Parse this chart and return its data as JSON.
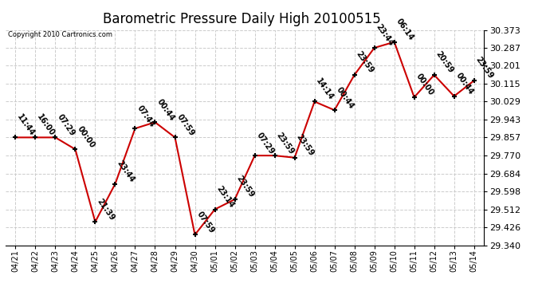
{
  "title": "Barometric Pressure Daily High 20100515",
  "copyright": "Copyright 2010 Cartronics.com",
  "x_labels": [
    "04/21",
    "04/22",
    "04/23",
    "04/24",
    "04/25",
    "04/26",
    "04/27",
    "04/28",
    "04/29",
    "04/30",
    "05/01",
    "05/02",
    "05/03",
    "05/04",
    "05/05",
    "05/06",
    "05/07",
    "05/08",
    "05/09",
    "05/10",
    "05/11",
    "05/12",
    "05/13",
    "05/14"
  ],
  "y_values": [
    29.857,
    29.857,
    29.857,
    29.8,
    29.452,
    29.634,
    29.9,
    29.93,
    29.857,
    29.39,
    29.512,
    29.56,
    29.77,
    29.77,
    29.76,
    30.029,
    29.988,
    30.157,
    30.287,
    30.315,
    30.05,
    30.157,
    30.055,
    30.13
  ],
  "annotations": [
    "11:44",
    "16:00",
    "07:29",
    "00:00",
    "21:39",
    "23:44",
    "07:44",
    "00:44",
    "07:59",
    "07:59",
    "23:14",
    "23:59",
    "07:29",
    "23:59",
    "23:59",
    "14:14",
    "00:44",
    "23:59",
    "23:44",
    "06:14",
    "00:00",
    "20:59",
    "00:44",
    "23:59"
  ],
  "y_min": 29.34,
  "y_max": 30.373,
  "y_ticks": [
    29.34,
    29.426,
    29.512,
    29.598,
    29.684,
    29.77,
    29.857,
    29.943,
    30.029,
    30.115,
    30.201,
    30.287,
    30.373
  ],
  "line_color": "#cc0000",
  "marker_color": "#000000",
  "bg_color": "#ffffff",
  "grid_color": "#cccccc",
  "title_fontsize": 12,
  "annotation_fontsize": 7,
  "xlabel_fontsize": 7,
  "ylabel_fontsize": 8
}
